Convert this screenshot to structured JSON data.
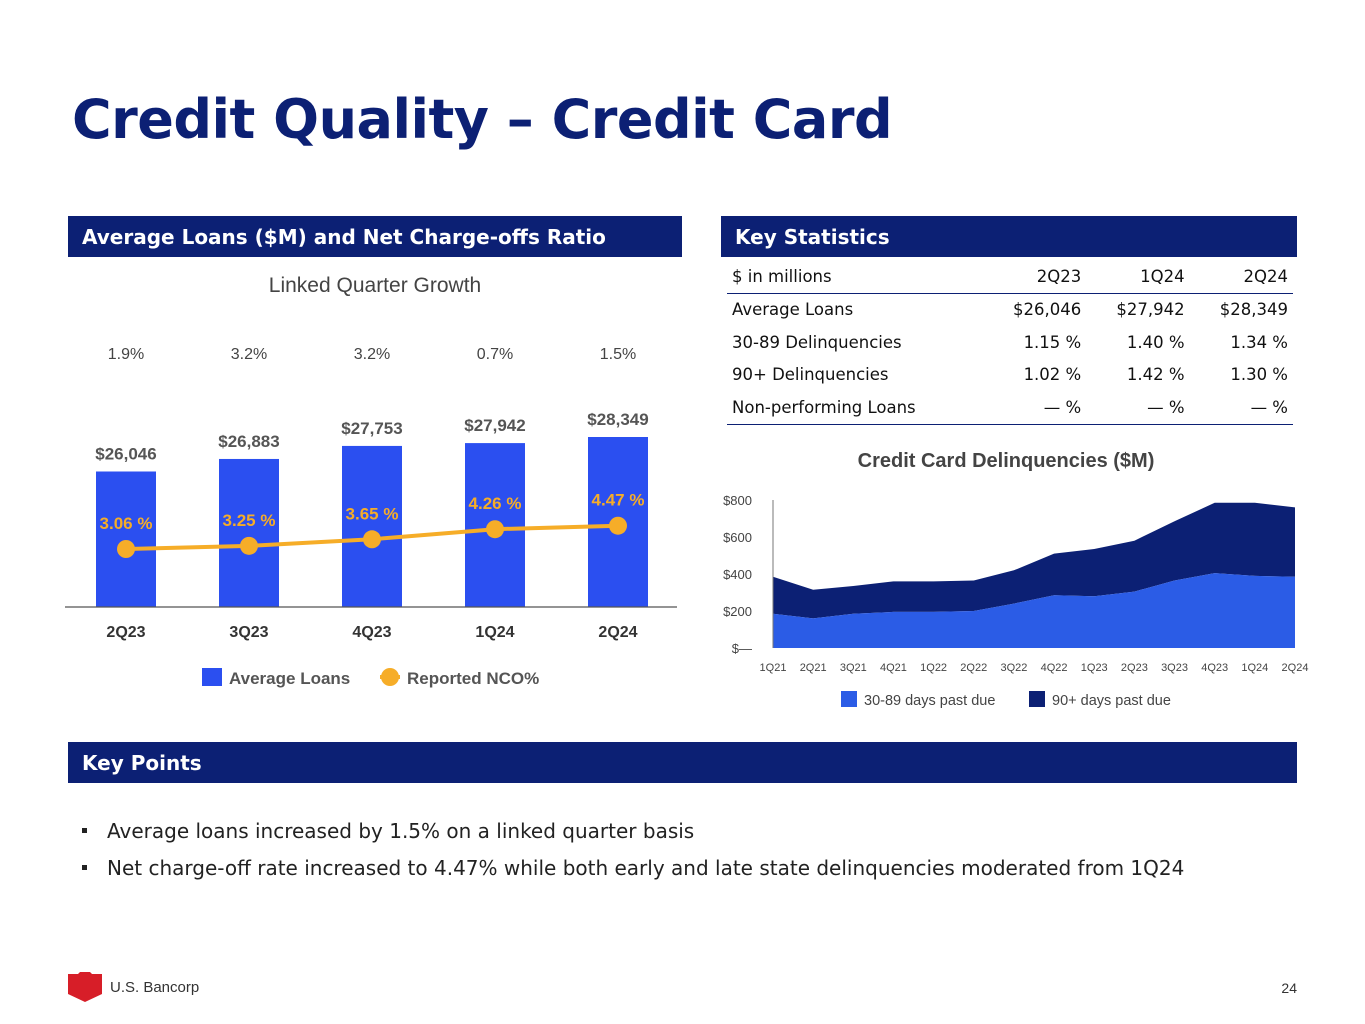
{
  "title": "Credit Quality – Credit Card",
  "left_panel": {
    "header": "Average Loans ($M) and Net Charge-offs Ratio"
  },
  "right_panel": {
    "header": "Key Statistics"
  },
  "key_points": {
    "header": "Key Points",
    "bullets": [
      "Average loans increased by 1.5% on a linked quarter basis",
      "Net charge-off rate increased to 4.47% while both early and late state delinquencies moderated from 1Q24"
    ]
  },
  "stats_table": {
    "columns": [
      "$ in millions",
      "2Q23",
      "1Q24",
      "2Q24"
    ],
    "rows": [
      [
        "Average Loans",
        "$26,046",
        "$27,942",
        "$28,349"
      ],
      [
        "30-89 Delinquencies",
        "1.15 %",
        "1.40 %",
        "1.34 %"
      ],
      [
        "90+ Delinquencies",
        "1.02 %",
        "1.42 %",
        "1.30 %"
      ],
      [
        "Non-performing Loans",
        "— %",
        "— %",
        "— %"
      ]
    ]
  },
  "footer": {
    "company": "U.S. Bancorp",
    "page": "24"
  },
  "colors": {
    "navy": "#0c2074",
    "blue": "#2b4ff0",
    "orange": "#f6ad28",
    "delinq_light": "#2b5ce6",
    "delinq_dark": "#0c2074"
  },
  "chart_data": [
    {
      "type": "bar",
      "title": "Linked Quarter Growth",
      "categories": [
        "2Q23",
        "3Q23",
        "4Q23",
        "1Q24",
        "2Q24"
      ],
      "growth_labels": [
        "1.9%",
        "3.2%",
        "3.2%",
        "0.7%",
        "1.5%"
      ],
      "series": [
        {
          "name": "Average Loans",
          "type": "bar",
          "values": [
            26046,
            26883,
            27753,
            27942,
            28349
          ],
          "labels": [
            "$26,046",
            "$26,883",
            "$27,753",
            "$27,942",
            "$28,349"
          ]
        },
        {
          "name": "Reported NCO%",
          "type": "line",
          "values": [
            3.06,
            3.25,
            3.65,
            4.26,
            4.47
          ],
          "labels": [
            "3.06 %",
            "3.25 %",
            "3.65 %",
            "4.26 %",
            "4.47 %"
          ]
        }
      ],
      "legend": [
        "Average Loans",
        "Reported NCO%"
      ]
    },
    {
      "type": "area",
      "title": "Credit Card Delinquencies ($M)",
      "x": [
        "1Q21",
        "2Q21",
        "3Q21",
        "4Q21",
        "1Q22",
        "2Q22",
        "3Q22",
        "4Q22",
        "1Q23",
        "2Q23",
        "3Q23",
        "4Q23",
        "1Q24",
        "2Q24"
      ],
      "yticks": [
        "$—",
        "$200",
        "$400",
        "$600",
        "$800"
      ],
      "ylim": [
        0,
        800
      ],
      "stacked": true,
      "series": [
        {
          "name": "30-89 days past due",
          "values": [
            185,
            160,
            185,
            195,
            195,
            200,
            240,
            285,
            280,
            305,
            365,
            405,
            390,
            385
          ]
        },
        {
          "name": "90+ days past due",
          "values": [
            200,
            155,
            150,
            165,
            165,
            165,
            180,
            225,
            255,
            275,
            320,
            380,
            395,
            375
          ]
        }
      ]
    }
  ]
}
